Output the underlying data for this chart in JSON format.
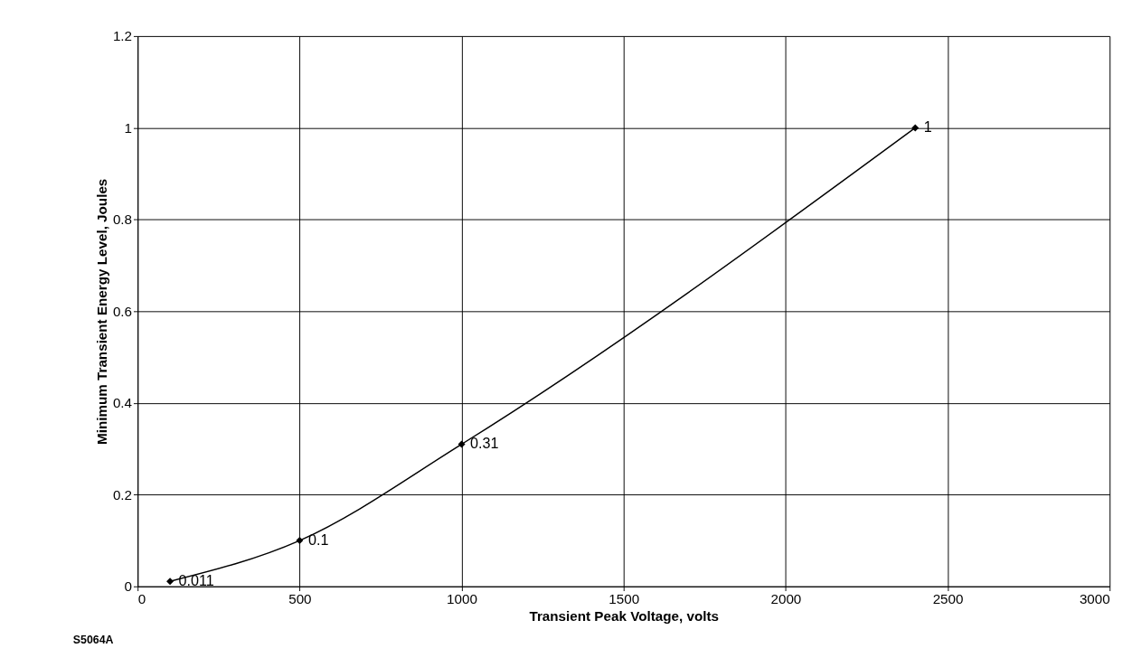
{
  "chart_data": {
    "type": "line",
    "xlabel": "Transient Peak Voltage, volts",
    "ylabel": "Minimum Transient Energy Level, Joules",
    "x": [
      100,
      500,
      1000,
      2400
    ],
    "series": [
      {
        "color": "#000000",
        "values": [
          0.011,
          0.1,
          0.31,
          1
        ]
      }
    ],
    "xlim": [
      0,
      3000
    ],
    "xticks": [
      0,
      500,
      1000,
      1500,
      2000,
      2500,
      3000
    ],
    "ylim": [
      0,
      1.2
    ],
    "yticks": [
      0,
      0.2,
      0.4,
      0.6,
      0.8,
      1,
      1.2
    ],
    "grid": true,
    "marker": "diamond",
    "line_style": "solid",
    "data_labels": true,
    "annotations": [
      "S5064A"
    ]
  }
}
